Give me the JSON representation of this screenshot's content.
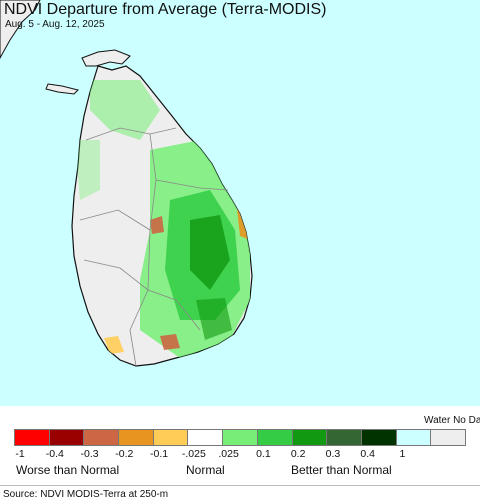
{
  "title": "NDVI Departure from Average (Terra-MODIS)",
  "subtitle": "Aug. 5 - Aug. 12, 2025",
  "legend": {
    "nodata_label": "Water No Data",
    "swatches": [
      {
        "color": "#ff0000",
        "name": "swatch-below-minus-0.4"
      },
      {
        "color": "#990000",
        "name": "swatch-minus-0.4"
      },
      {
        "color": "#cc6644",
        "name": "swatch-minus-0.3"
      },
      {
        "color": "#e89420",
        "name": "swatch-minus-0.2"
      },
      {
        "color": "#ffcc55",
        "name": "swatch-minus-0.1"
      },
      {
        "color": "#ffffff",
        "name": "swatch-normal"
      },
      {
        "color": "#77ee77",
        "name": "swatch-0.025"
      },
      {
        "color": "#33cc44",
        "name": "swatch-0.1"
      },
      {
        "color": "#119911",
        "name": "swatch-0.2"
      },
      {
        "color": "#336633",
        "name": "swatch-0.3"
      },
      {
        "color": "#003300",
        "name": "swatch-0.4"
      },
      {
        "color": "#ccffff",
        "name": "swatch-water"
      },
      {
        "color": "#eeeeee",
        "name": "swatch-no-data"
      }
    ],
    "ticks": [
      "-1",
      "-0.4",
      "-0.3",
      "-0.2",
      "-0.1",
      "-.025",
      ".025",
      "0.1",
      "0.2",
      "0.3",
      "0.4",
      "1"
    ],
    "categories": {
      "worse": "Worse than Normal",
      "normal": "Normal",
      "better": "Better than Normal"
    }
  },
  "source": "Source: NDVI MODIS-Terra at 250-m",
  "colors": {
    "water": "#ccffff",
    "land_no_change": "#eeeeee",
    "boundary": "#888888"
  }
}
